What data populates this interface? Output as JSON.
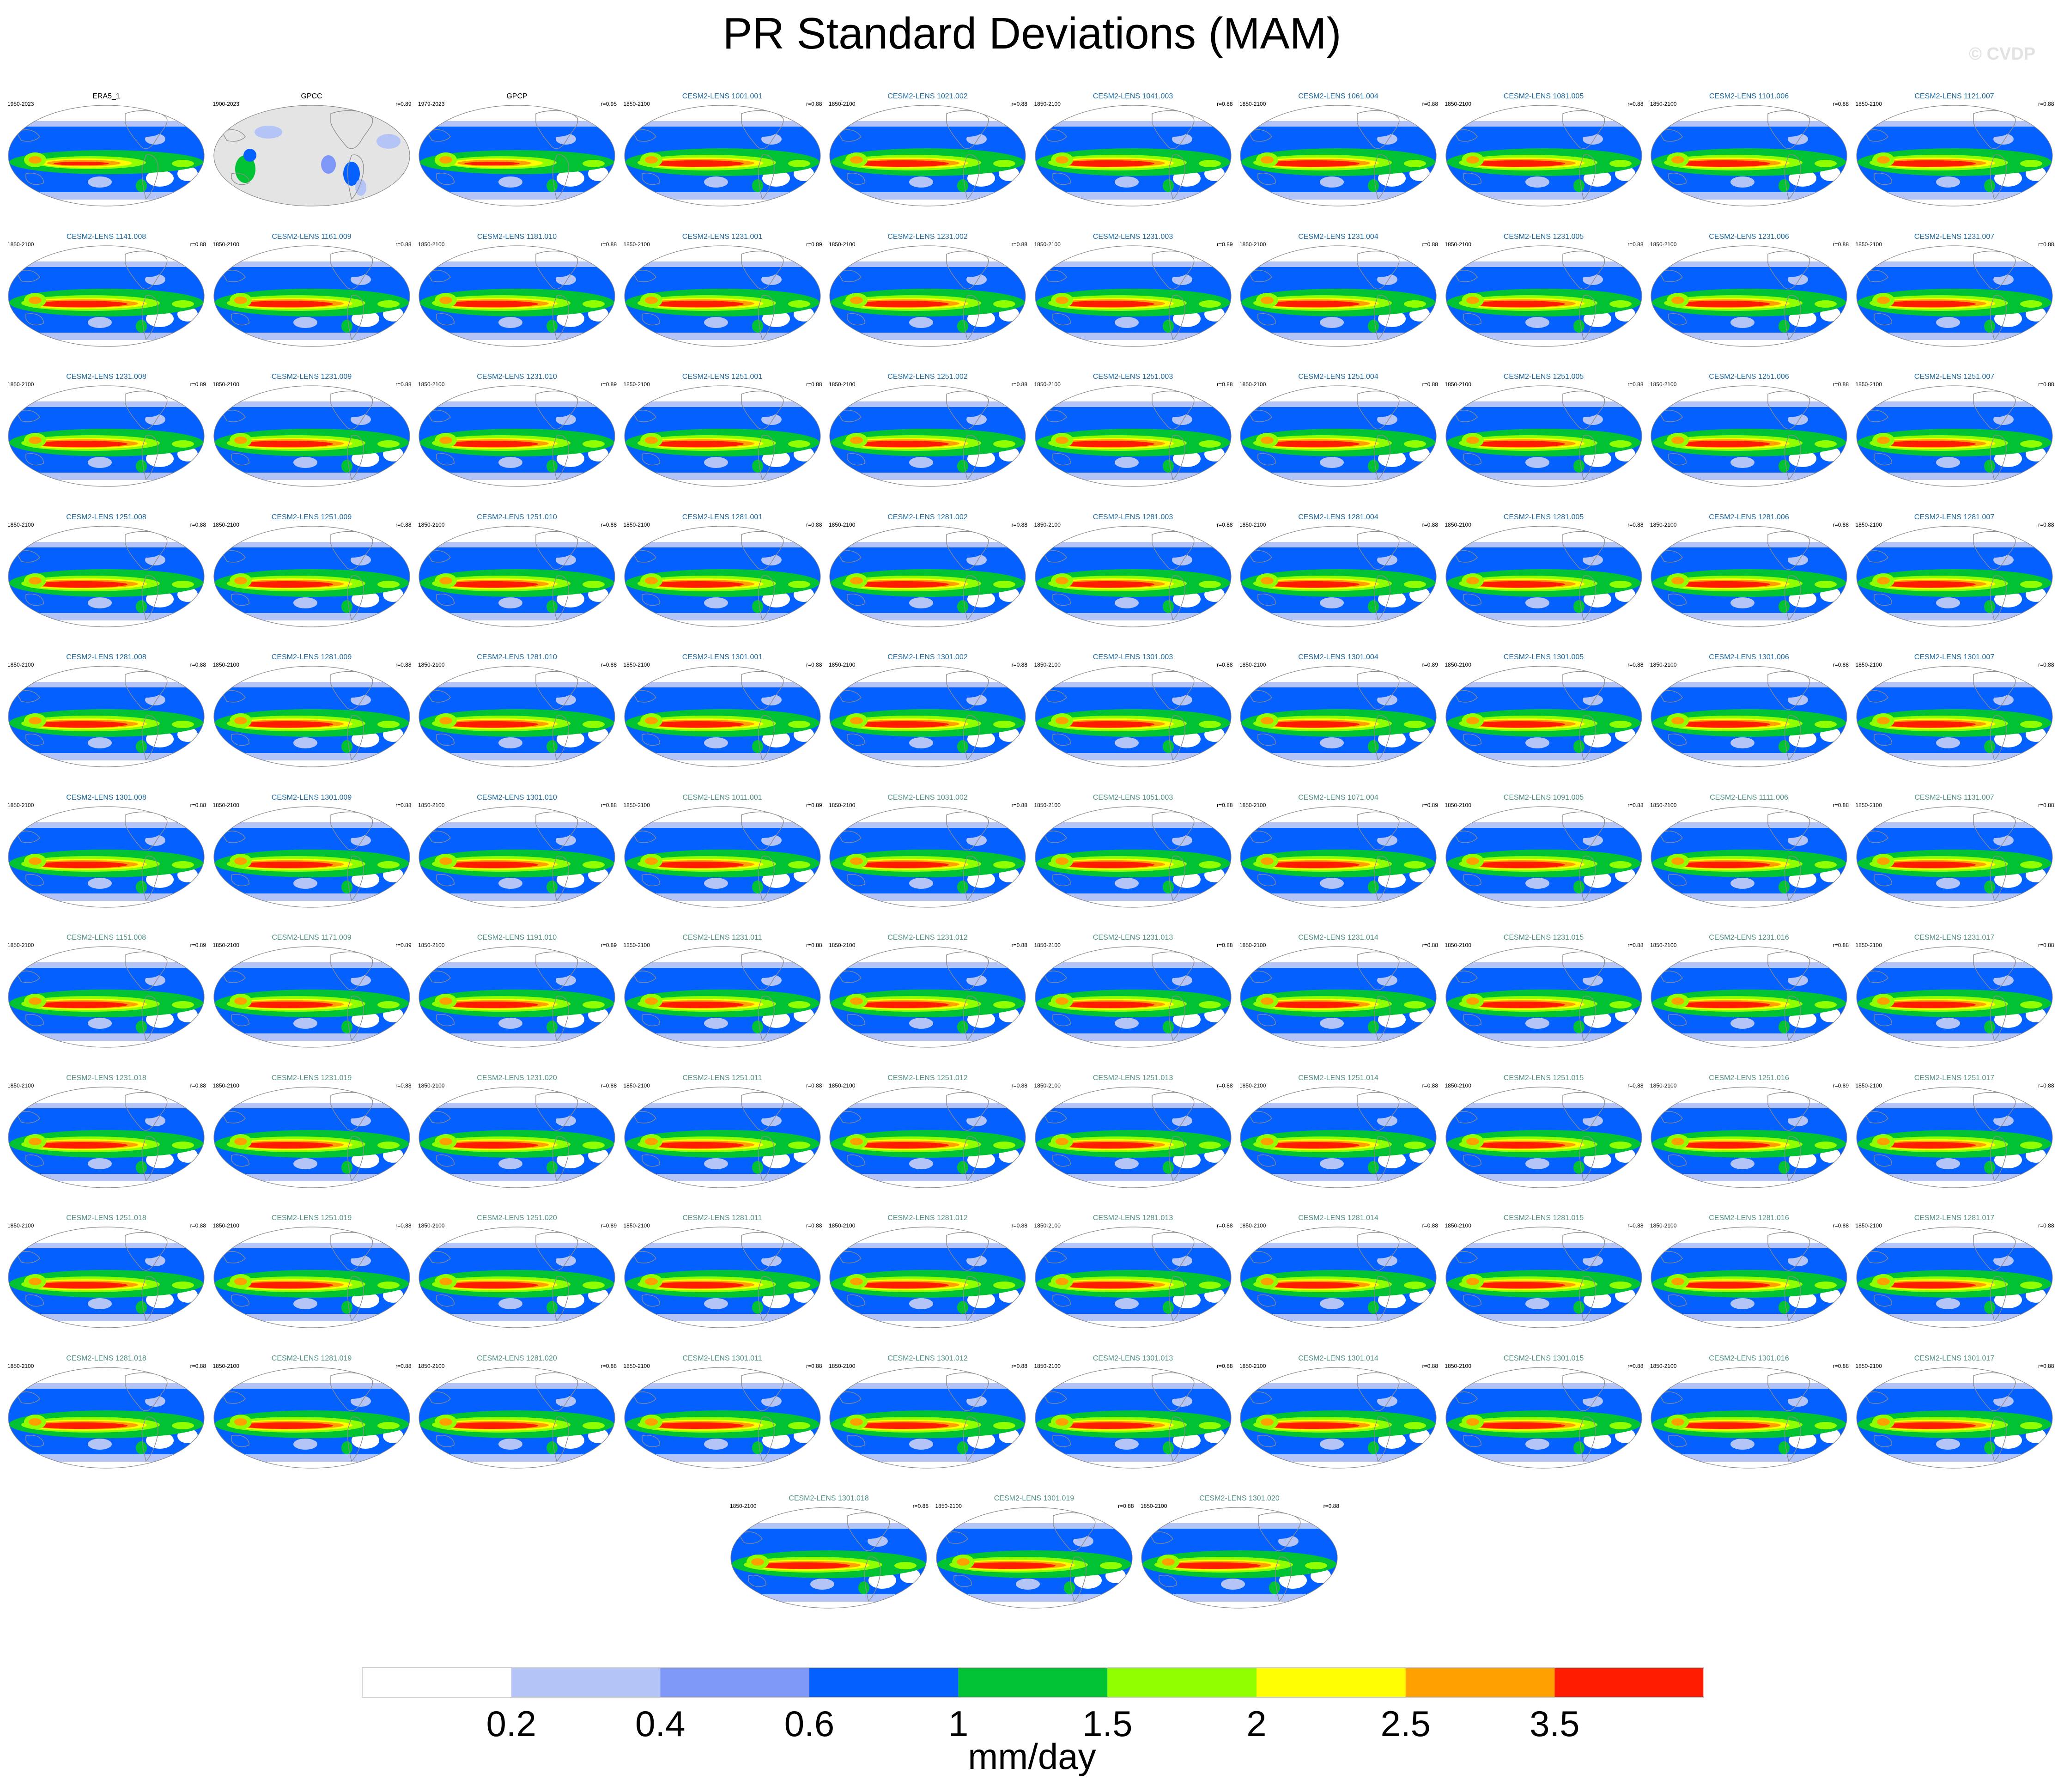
{
  "figure": {
    "title": "PR Standard Deviations (MAM)",
    "watermark": "© CVDP",
    "units": "mm/day"
  },
  "colors": {
    "levels": [
      "#ffffff",
      "#b4c4f6",
      "#7f97f7",
      "#0460ff",
      "#00c233",
      "#90ff00",
      "#fffd00",
      "#ffa000",
      "#ff1c00"
    ],
    "land_obs_missing": "#e4e4e4",
    "coast": "#8c8c8c"
  },
  "colorbar": {
    "boundaries": [
      "0.2",
      "0.4",
      "0.6",
      "1",
      "1.5",
      "2",
      "2.5",
      "3.5"
    ]
  },
  "panels": [
    {
      "name": "ERA5_1",
      "years": "1950-2023",
      "r": "",
      "kind": "obs"
    },
    {
      "name": "GPCC",
      "years": "1900-2023",
      "r": "r=0.89",
      "kind": "obs"
    },
    {
      "name": "GPCP",
      "years": "1979-2023",
      "r": "r=0.95",
      "kind": "obs"
    },
    {
      "name": "CESM2-LENS 1001.001",
      "years": "1850-2100",
      "r": "r=0.88",
      "kind": "set1"
    },
    {
      "name": "CESM2-LENS 1021.002",
      "years": "1850-2100",
      "r": "r=0.88",
      "kind": "set1"
    },
    {
      "name": "CESM2-LENS 1041.003",
      "years": "1850-2100",
      "r": "r=0.88",
      "kind": "set1"
    },
    {
      "name": "CESM2-LENS 1061.004",
      "years": "1850-2100",
      "r": "r=0.88",
      "kind": "set1"
    },
    {
      "name": "CESM2-LENS 1081.005",
      "years": "1850-2100",
      "r": "r=0.88",
      "kind": "set1"
    },
    {
      "name": "CESM2-LENS 1101.006",
      "years": "1850-2100",
      "r": "r=0.88",
      "kind": "set1"
    },
    {
      "name": "CESM2-LENS 1121.007",
      "years": "1850-2100",
      "r": "r=0.88",
      "kind": "set1"
    },
    {
      "name": "CESM2-LENS 1141.008",
      "years": "1850-2100",
      "r": "r=0.88",
      "kind": "set1"
    },
    {
      "name": "CESM2-LENS 1161.009",
      "years": "1850-2100",
      "r": "r=0.88",
      "kind": "set1"
    },
    {
      "name": "CESM2-LENS 1181.010",
      "years": "1850-2100",
      "r": "r=0.88",
      "kind": "set1"
    },
    {
      "name": "CESM2-LENS 1231.001",
      "years": "1850-2100",
      "r": "r=0.89",
      "kind": "set1"
    },
    {
      "name": "CESM2-LENS 1231.002",
      "years": "1850-2100",
      "r": "r=0.88",
      "kind": "set1"
    },
    {
      "name": "CESM2-LENS 1231.003",
      "years": "1850-2100",
      "r": "r=0.89",
      "kind": "set1"
    },
    {
      "name": "CESM2-LENS 1231.004",
      "years": "1850-2100",
      "r": "r=0.88",
      "kind": "set1"
    },
    {
      "name": "CESM2-LENS 1231.005",
      "years": "1850-2100",
      "r": "r=0.88",
      "kind": "set1"
    },
    {
      "name": "CESM2-LENS 1231.006",
      "years": "1850-2100",
      "r": "r=0.88",
      "kind": "set1"
    },
    {
      "name": "CESM2-LENS 1231.007",
      "years": "1850-2100",
      "r": "r=0.88",
      "kind": "set1"
    },
    {
      "name": "CESM2-LENS 1231.008",
      "years": "1850-2100",
      "r": "r=0.89",
      "kind": "set1"
    },
    {
      "name": "CESM2-LENS 1231.009",
      "years": "1850-2100",
      "r": "r=0.88",
      "kind": "set1"
    },
    {
      "name": "CESM2-LENS 1231.010",
      "years": "1850-2100",
      "r": "r=0.89",
      "kind": "set1"
    },
    {
      "name": "CESM2-LENS 1251.001",
      "years": "1850-2100",
      "r": "r=0.88",
      "kind": "set1"
    },
    {
      "name": "CESM2-LENS 1251.002",
      "years": "1850-2100",
      "r": "r=0.88",
      "kind": "set1"
    },
    {
      "name": "CESM2-LENS 1251.003",
      "years": "1850-2100",
      "r": "r=0.88",
      "kind": "set1"
    },
    {
      "name": "CESM2-LENS 1251.004",
      "years": "1850-2100",
      "r": "r=0.88",
      "kind": "set1"
    },
    {
      "name": "CESM2-LENS 1251.005",
      "years": "1850-2100",
      "r": "r=0.88",
      "kind": "set1"
    },
    {
      "name": "CESM2-LENS 1251.006",
      "years": "1850-2100",
      "r": "r=0.88",
      "kind": "set1"
    },
    {
      "name": "CESM2-LENS 1251.007",
      "years": "1850-2100",
      "r": "r=0.88",
      "kind": "set1"
    },
    {
      "name": "CESM2-LENS 1251.008",
      "years": "1850-2100",
      "r": "r=0.88",
      "kind": "set1"
    },
    {
      "name": "CESM2-LENS 1251.009",
      "years": "1850-2100",
      "r": "r=0.88",
      "kind": "set1"
    },
    {
      "name": "CESM2-LENS 1251.010",
      "years": "1850-2100",
      "r": "r=0.88",
      "kind": "set1"
    },
    {
      "name": "CESM2-LENS 1281.001",
      "years": "1850-2100",
      "r": "r=0.88",
      "kind": "set1"
    },
    {
      "name": "CESM2-LENS 1281.002",
      "years": "1850-2100",
      "r": "r=0.88",
      "kind": "set1"
    },
    {
      "name": "CESM2-LENS 1281.003",
      "years": "1850-2100",
      "r": "r=0.88",
      "kind": "set1"
    },
    {
      "name": "CESM2-LENS 1281.004",
      "years": "1850-2100",
      "r": "r=0.88",
      "kind": "set1"
    },
    {
      "name": "CESM2-LENS 1281.005",
      "years": "1850-2100",
      "r": "r=0.88",
      "kind": "set1"
    },
    {
      "name": "CESM2-LENS 1281.006",
      "years": "1850-2100",
      "r": "r=0.88",
      "kind": "set1"
    },
    {
      "name": "CESM2-LENS 1281.007",
      "years": "1850-2100",
      "r": "r=0.88",
      "kind": "set1"
    },
    {
      "name": "CESM2-LENS 1281.008",
      "years": "1850-2100",
      "r": "r=0.88",
      "kind": "set1"
    },
    {
      "name": "CESM2-LENS 1281.009",
      "years": "1850-2100",
      "r": "r=0.88",
      "kind": "set1"
    },
    {
      "name": "CESM2-LENS 1281.010",
      "years": "1850-2100",
      "r": "r=0.88",
      "kind": "set1"
    },
    {
      "name": "CESM2-LENS 1301.001",
      "years": "1850-2100",
      "r": "r=0.88",
      "kind": "set1"
    },
    {
      "name": "CESM2-LENS 1301.002",
      "years": "1850-2100",
      "r": "r=0.88",
      "kind": "set1"
    },
    {
      "name": "CESM2-LENS 1301.003",
      "years": "1850-2100",
      "r": "r=0.88",
      "kind": "set1"
    },
    {
      "name": "CESM2-LENS 1301.004",
      "years": "1850-2100",
      "r": "r=0.89",
      "kind": "set1"
    },
    {
      "name": "CESM2-LENS 1301.005",
      "years": "1850-2100",
      "r": "r=0.88",
      "kind": "set1"
    },
    {
      "name": "CESM2-LENS 1301.006",
      "years": "1850-2100",
      "r": "r=0.88",
      "kind": "set1"
    },
    {
      "name": "CESM2-LENS 1301.007",
      "years": "1850-2100",
      "r": "r=0.88",
      "kind": "set1"
    },
    {
      "name": "CESM2-LENS 1301.008",
      "years": "1850-2100",
      "r": "r=0.88",
      "kind": "set1"
    },
    {
      "name": "CESM2-LENS 1301.009",
      "years": "1850-2100",
      "r": "r=0.88",
      "kind": "set1"
    },
    {
      "name": "CESM2-LENS 1301.010",
      "years": "1850-2100",
      "r": "r=0.88",
      "kind": "set1"
    },
    {
      "name": "CESM2-LENS 1011.001",
      "years": "1850-2100",
      "r": "r=0.89",
      "kind": "set2"
    },
    {
      "name": "CESM2-LENS 1031.002",
      "years": "1850-2100",
      "r": "r=0.88",
      "kind": "set2"
    },
    {
      "name": "CESM2-LENS 1051.003",
      "years": "1850-2100",
      "r": "r=0.88",
      "kind": "set2"
    },
    {
      "name": "CESM2-LENS 1071.004",
      "years": "1850-2100",
      "r": "r=0.89",
      "kind": "set2"
    },
    {
      "name": "CESM2-LENS 1091.005",
      "years": "1850-2100",
      "r": "r=0.88",
      "kind": "set2"
    },
    {
      "name": "CESM2-LENS 1111.006",
      "years": "1850-2100",
      "r": "r=0.88",
      "kind": "set2"
    },
    {
      "name": "CESM2-LENS 1131.007",
      "years": "1850-2100",
      "r": "r=0.88",
      "kind": "set2"
    },
    {
      "name": "CESM2-LENS 1151.008",
      "years": "1850-2100",
      "r": "r=0.89",
      "kind": "set2"
    },
    {
      "name": "CESM2-LENS 1171.009",
      "years": "1850-2100",
      "r": "r=0.89",
      "kind": "set2"
    },
    {
      "name": "CESM2-LENS 1191.010",
      "years": "1850-2100",
      "r": "r=0.89",
      "kind": "set2"
    },
    {
      "name": "CESM2-LENS 1231.011",
      "years": "1850-2100",
      "r": "r=0.88",
      "kind": "set2"
    },
    {
      "name": "CESM2-LENS 1231.012",
      "years": "1850-2100",
      "r": "r=0.88",
      "kind": "set2"
    },
    {
      "name": "CESM2-LENS 1231.013",
      "years": "1850-2100",
      "r": "r=0.88",
      "kind": "set2"
    },
    {
      "name": "CESM2-LENS 1231.014",
      "years": "1850-2100",
      "r": "r=0.88",
      "kind": "set2"
    },
    {
      "name": "CESM2-LENS 1231.015",
      "years": "1850-2100",
      "r": "r=0.88",
      "kind": "set2"
    },
    {
      "name": "CESM2-LENS 1231.016",
      "years": "1850-2100",
      "r": "r=0.88",
      "kind": "set2"
    },
    {
      "name": "CESM2-LENS 1231.017",
      "years": "1850-2100",
      "r": "r=0.88",
      "kind": "set2"
    },
    {
      "name": "CESM2-LENS 1231.018",
      "years": "1850-2100",
      "r": "r=0.88",
      "kind": "set2"
    },
    {
      "name": "CESM2-LENS 1231.019",
      "years": "1850-2100",
      "r": "r=0.88",
      "kind": "set2"
    },
    {
      "name": "CESM2-LENS 1231.020",
      "years": "1850-2100",
      "r": "r=0.88",
      "kind": "set2"
    },
    {
      "name": "CESM2-LENS 1251.011",
      "years": "1850-2100",
      "r": "r=0.88",
      "kind": "set2"
    },
    {
      "name": "CESM2-LENS 1251.012",
      "years": "1850-2100",
      "r": "r=0.88",
      "kind": "set2"
    },
    {
      "name": "CESM2-LENS 1251.013",
      "years": "1850-2100",
      "r": "r=0.88",
      "kind": "set2"
    },
    {
      "name": "CESM2-LENS 1251.014",
      "years": "1850-2100",
      "r": "r=0.88",
      "kind": "set2"
    },
    {
      "name": "CESM2-LENS 1251.015",
      "years": "1850-2100",
      "r": "r=0.88",
      "kind": "set2"
    },
    {
      "name": "CESM2-LENS 1251.016",
      "years": "1850-2100",
      "r": "r=0.89",
      "kind": "set2"
    },
    {
      "name": "CESM2-LENS 1251.017",
      "years": "1850-2100",
      "r": "r=0.88",
      "kind": "set2"
    },
    {
      "name": "CESM2-LENS 1251.018",
      "years": "1850-2100",
      "r": "r=0.88",
      "kind": "set2"
    },
    {
      "name": "CESM2-LENS 1251.019",
      "years": "1850-2100",
      "r": "r=0.88",
      "kind": "set2"
    },
    {
      "name": "CESM2-LENS 1251.020",
      "years": "1850-2100",
      "r": "r=0.89",
      "kind": "set2"
    },
    {
      "name": "CESM2-LENS 1281.011",
      "years": "1850-2100",
      "r": "r=0.88",
      "kind": "set2"
    },
    {
      "name": "CESM2-LENS 1281.012",
      "years": "1850-2100",
      "r": "r=0.88",
      "kind": "set2"
    },
    {
      "name": "CESM2-LENS 1281.013",
      "years": "1850-2100",
      "r": "r=0.88",
      "kind": "set2"
    },
    {
      "name": "CESM2-LENS 1281.014",
      "years": "1850-2100",
      "r": "r=0.88",
      "kind": "set2"
    },
    {
      "name": "CESM2-LENS 1281.015",
      "years": "1850-2100",
      "r": "r=0.88",
      "kind": "set2"
    },
    {
      "name": "CESM2-LENS 1281.016",
      "years": "1850-2100",
      "r": "r=0.88",
      "kind": "set2"
    },
    {
      "name": "CESM2-LENS 1281.017",
      "years": "1850-2100",
      "r": "r=0.88",
      "kind": "set2"
    },
    {
      "name": "CESM2-LENS 1281.018",
      "years": "1850-2100",
      "r": "r=0.88",
      "kind": "set2"
    },
    {
      "name": "CESM2-LENS 1281.019",
      "years": "1850-2100",
      "r": "r=0.88",
      "kind": "set2"
    },
    {
      "name": "CESM2-LENS 1281.020",
      "years": "1850-2100",
      "r": "r=0.88",
      "kind": "set2"
    },
    {
      "name": "CESM2-LENS 1301.011",
      "years": "1850-2100",
      "r": "r=0.88",
      "kind": "set2"
    },
    {
      "name": "CESM2-LENS 1301.012",
      "years": "1850-2100",
      "r": "r=0.88",
      "kind": "set2"
    },
    {
      "name": "CESM2-LENS 1301.013",
      "years": "1850-2100",
      "r": "r=0.88",
      "kind": "set2"
    },
    {
      "name": "CESM2-LENS 1301.014",
      "years": "1850-2100",
      "r": "r=0.88",
      "kind": "set2"
    },
    {
      "name": "CESM2-LENS 1301.015",
      "years": "1850-2100",
      "r": "r=0.88",
      "kind": "set2"
    },
    {
      "name": "CESM2-LENS 1301.016",
      "years": "1850-2100",
      "r": "r=0.88",
      "kind": "set2"
    },
    {
      "name": "CESM2-LENS 1301.017",
      "years": "1850-2100",
      "r": "r=0.88",
      "kind": "set2"
    },
    {
      "name": "CESM2-LENS 1301.018",
      "years": "1850-2100",
      "r": "r=0.88",
      "kind": "set2"
    },
    {
      "name": "CESM2-LENS 1301.019",
      "years": "1850-2100",
      "r": "r=0.88",
      "kind": "set2"
    },
    {
      "name": "CESM2-LENS 1301.020",
      "years": "1850-2100",
      "r": "r=0.88",
      "kind": "set2"
    }
  ],
  "chart_data": {
    "type": "heatmap",
    "title": "PR Standard Deviations (MAM)",
    "colorbar_label": "mm/day",
    "colorbar_boundaries": [
      0.2,
      0.4,
      0.6,
      1,
      1.5,
      2,
      2.5,
      3.5
    ],
    "panel_count": 103,
    "layout": "10 panels per row, 10 full rows plus a centered final row of 3",
    "projection": "global Robinson-style ellipse centred on the Pacific"
  }
}
